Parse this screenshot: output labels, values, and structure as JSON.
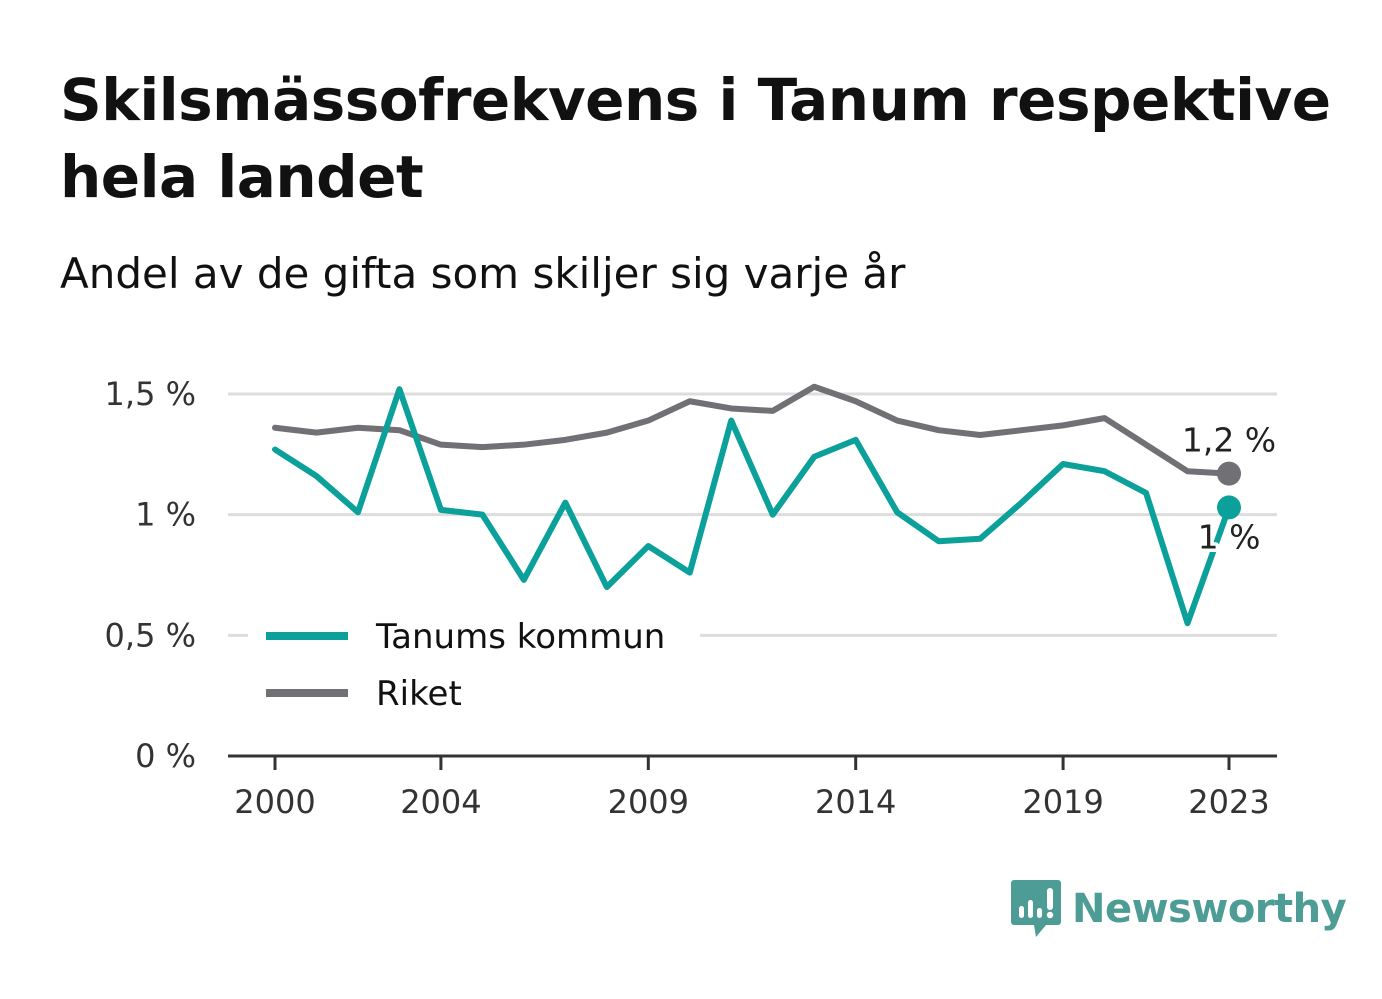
{
  "header": {
    "title": "Skilsmässofrekvens i Tanum respektive hela landet",
    "subtitle": "Andel av de gifta som skiljer sig varje år"
  },
  "brand": {
    "name": "Newsworthy",
    "color": "#4e9c96",
    "icon": "newsworthy-logo-icon"
  },
  "chart_data": {
    "type": "line",
    "x": [
      2000,
      2001,
      2002,
      2003,
      2004,
      2005,
      2006,
      2007,
      2008,
      2009,
      2010,
      2011,
      2012,
      2013,
      2014,
      2015,
      2016,
      2017,
      2018,
      2019,
      2020,
      2021,
      2022,
      2023
    ],
    "x_ticks": [
      {
        "value": 2000,
        "label": "2000"
      },
      {
        "value": 2004,
        "label": "2004"
      },
      {
        "value": 2009,
        "label": "2009"
      },
      {
        "value": 2014,
        "label": "2014"
      },
      {
        "value": 2019,
        "label": "2019"
      },
      {
        "value": 2023,
        "label": "2023"
      }
    ],
    "y_ticks": [
      {
        "value": 0,
        "label": "0 %"
      },
      {
        "value": 0.5,
        "label": "0,5 %"
      },
      {
        "value": 1,
        "label": "1 %"
      },
      {
        "value": 1.5,
        "label": "1,5 %"
      }
    ],
    "ylim": [
      0,
      1.5
    ],
    "grid": true,
    "series": [
      {
        "name": "Tanums kommun",
        "color": "#0ba09a",
        "values": [
          1.27,
          1.16,
          1.01,
          1.52,
          1.02,
          1.0,
          0.73,
          1.05,
          0.7,
          0.87,
          0.76,
          1.39,
          1.0,
          1.24,
          1.31,
          1.01,
          0.89,
          0.9,
          1.05,
          1.21,
          1.18,
          1.09,
          0.55,
          1.03
        ],
        "end_label": "1 %"
      },
      {
        "name": "Riket",
        "color": "#717075",
        "values": [
          1.36,
          1.34,
          1.36,
          1.35,
          1.29,
          1.28,
          1.29,
          1.31,
          1.34,
          1.39,
          1.47,
          1.44,
          1.43,
          1.53,
          1.47,
          1.39,
          1.35,
          1.33,
          1.35,
          1.37,
          1.4,
          1.29,
          1.18,
          1.17
        ],
        "end_label": "1,2 %"
      }
    ],
    "legend_position": "bottom-left"
  }
}
